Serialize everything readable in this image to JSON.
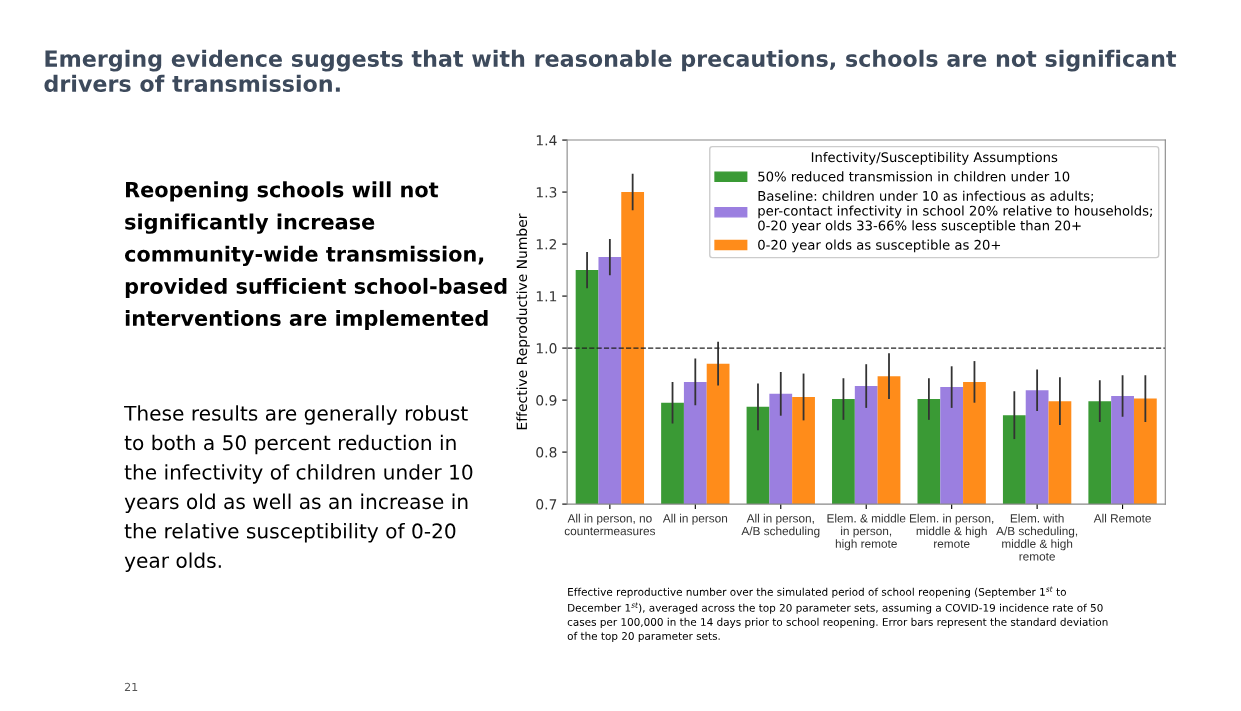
{
  "chart_data": {
    "type": "bar",
    "title": "Emerging evidence suggests that with reasonable precautions, schools are not significant\ndrivers of transmission.",
    "ylabel": "Effective Reproductive Number",
    "legend_title": "Infectivity/Susceptibility Assumptions",
    "categories": [
      "All in person, no\ncountermeasures",
      "All in person",
      "All in person,\nA/B scheduling",
      "Elem. & middle\nin person,\nhigh remote",
      "Elem. in person,\nmiddle & high\nremote",
      "Elem. with\nA/B scheduling,\nmiddle & high\nremote",
      "All Remote"
    ],
    "series": [
      {
        "name": "50% reduced transmission in children under 10",
        "color": "#3a9a35",
        "values": [
          1.15,
          0.895,
          0.887,
          0.902,
          0.902,
          0.871,
          0.898
        ],
        "errors": [
          0.035,
          0.04,
          0.045,
          0.04,
          0.04,
          0.046,
          0.04
        ]
      },
      {
        "name": "Baseline: children under 10 as infectious as adults;\nper-contact infectivity in school 20% relative to households;\n0-20 year olds 33-66% less susceptible than 20+",
        "color": "#9b7fe0",
        "values": [
          1.175,
          0.935,
          0.912,
          0.927,
          0.925,
          0.919,
          0.908
        ],
        "errors": [
          0.035,
          0.045,
          0.042,
          0.042,
          0.04,
          0.04,
          0.04
        ]
      },
      {
        "name": "0-20 year olds as susceptible as 20+",
        "color": "#ff8c1a",
        "values": [
          1.3,
          0.97,
          0.906,
          0.946,
          0.935,
          0.898,
          0.903
        ],
        "errors": [
          0.035,
          0.042,
          0.045,
          0.044,
          0.04,
          0.046,
          0.045
        ]
      }
    ],
    "ylim": [
      0.7,
      1.4
    ],
    "yticks": [
      0.7,
      0.8,
      0.9,
      {
        "value": 1.0,
        "label": "1.0"
      },
      1.1,
      1.2,
      1.3,
      1.4
    ],
    "ref_lines": [
      {
        "axis": "y",
        "value": 1.0,
        "color": "#222222",
        "line_style": "dashed"
      }
    ],
    "legend": "top right",
    "grid": false,
    "annotations": [
      "Reopening schools will not\nsignificantly increase\ncommunity-wide transmission,\nprovided sufficient school-based\ninterventions are implemented",
      "These results are generally robust\nto both a 50 percent reduction in\nthe infectivity of children under 10\nyears old as well as an increase in\nthe relative susceptibility of 0-20\nyear olds.",
      "Effective reproductive number over the simulated period of school reopening (September 1$^{st}$ to\nDecember 1$^{st}$), averaged across the top 20 parameter sets, assuming a COVID-19 incidence rate of 50\ncases per 100,000 in the 14 days prior to school reopening. Error bars represent the standard deviation\nof the top 20 parameter sets.",
      "21"
    ]
  }
}
